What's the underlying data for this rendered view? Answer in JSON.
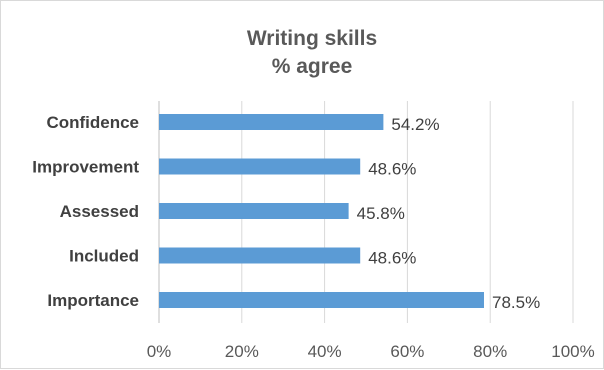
{
  "chart_data": {
    "type": "bar",
    "orientation": "horizontal",
    "title_lines": [
      "Writing skills",
      "% agree"
    ],
    "categories": [
      "Confidence",
      "Improvement",
      "Assessed",
      "Included",
      "Importance"
    ],
    "values": [
      54.2,
      48.6,
      45.8,
      48.6,
      78.5
    ],
    "value_labels": [
      "54.2%",
      "48.6%",
      "45.8%",
      "48.6%",
      "78.5%"
    ],
    "xlim": [
      0,
      100
    ],
    "x_ticks": [
      0,
      20,
      40,
      60,
      80,
      100
    ],
    "x_tick_labels": [
      "0%",
      "20%",
      "40%",
      "60%",
      "80%",
      "100%"
    ],
    "grid": true,
    "legend": "none",
    "colors": {
      "bar": "#5b9bd5",
      "grid": "#d9d9d9",
      "axis": "#bfbfbf"
    }
  }
}
